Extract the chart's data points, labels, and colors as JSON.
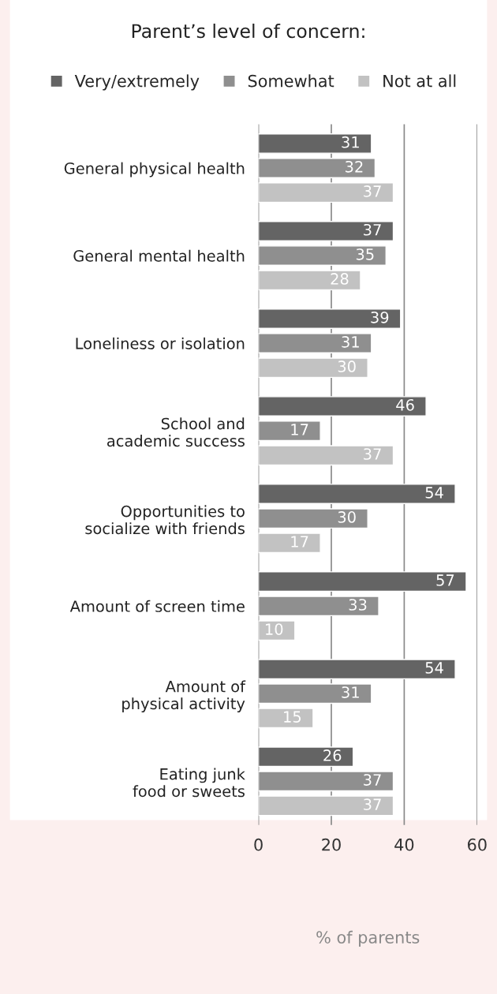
{
  "chart_data": {
    "type": "bar",
    "orientation": "horizontal",
    "title": "Parent’s level of concern:",
    "xlabel": "% of parents",
    "categories": [
      "General physical health",
      "General mental health",
      "Loneliness or isolation",
      "School and academic success",
      "Opportunities to socialize with friends",
      "Amount of screen time",
      "Amount of physical activity",
      "Eating junk food or sweets"
    ],
    "series": [
      {
        "name": "Very/extremely",
        "color": "#646464",
        "values": [
          31,
          37,
          39,
          46,
          54,
          57,
          54,
          26
        ]
      },
      {
        "name": "Somewhat",
        "color": "#8f8f8f",
        "values": [
          32,
          35,
          31,
          17,
          30,
          33,
          31,
          37
        ]
      },
      {
        "name": "Not at all",
        "color": "#c2c2c2",
        "values": [
          37,
          28,
          30,
          37,
          17,
          10,
          15,
          37
        ]
      }
    ],
    "xlim": [
      0,
      60
    ],
    "xticks": [
      0,
      20,
      40,
      60
    ],
    "grid": "x",
    "legend": "top",
    "data_labels": true
  }
}
